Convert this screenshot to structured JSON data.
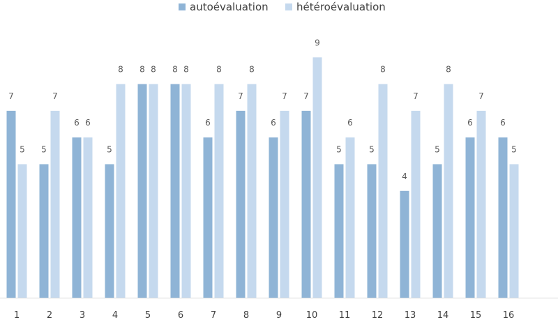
{
  "chart_data": {
    "type": "bar",
    "categories": [
      "1",
      "2",
      "3",
      "4",
      "5",
      "6",
      "7",
      "8",
      "9",
      "10",
      "11",
      "12",
      "13",
      "14",
      "15",
      "16"
    ],
    "series": [
      {
        "name": "autoévaluation",
        "color": "#8fb4d6",
        "values": [
          7,
          5,
          6,
          5,
          8,
          8,
          6,
          7,
          6,
          7,
          5,
          5,
          4,
          5,
          6,
          6
        ]
      },
      {
        "name": "hétéroévaluation",
        "color": "#c5d9ee",
        "values": [
          5,
          7,
          6,
          8,
          8,
          8,
          8,
          8,
          7,
          9,
          6,
          8,
          7,
          8,
          7,
          5
        ]
      }
    ],
    "ylim": [
      0,
      10
    ],
    "data_labels": true,
    "grid": false,
    "legend_position": "top"
  }
}
